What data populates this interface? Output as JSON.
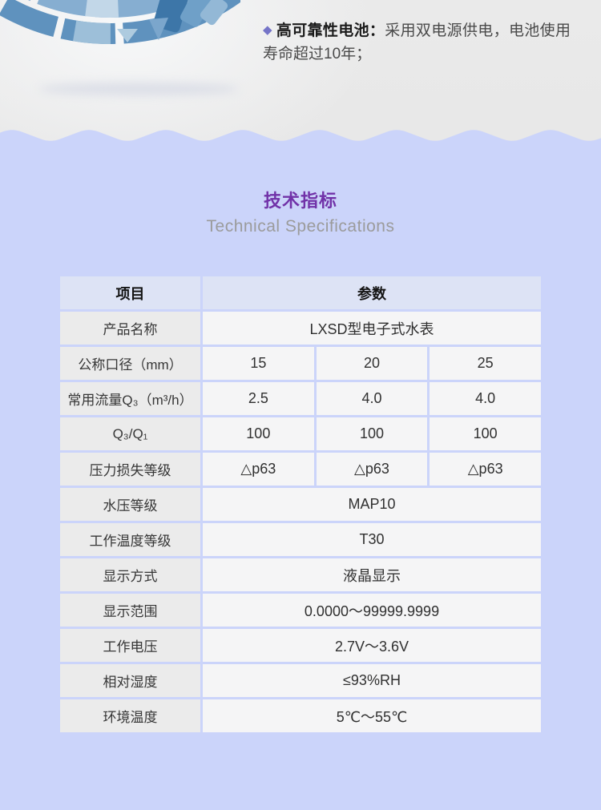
{
  "feature": {
    "bullet": "◆",
    "title": "高可靠性电池：",
    "description": "采用双电源供电，电池使用寿命超过10年；"
  },
  "section": {
    "title": "技术指标",
    "subtitle": "Technical Specifications"
  },
  "table": {
    "headers": {
      "item": "项目",
      "parameter": "参数"
    },
    "rows": [
      {
        "label": "产品名称",
        "value": "LXSD型电子式水表"
      },
      {
        "label": "公称口径（mm）",
        "values": [
          "15",
          "20",
          "25"
        ]
      },
      {
        "label": "常用流量Q₃（m³/h）",
        "values": [
          "2.5",
          "4.0",
          "4.0"
        ]
      },
      {
        "label": "Q₃/Q₁",
        "values": [
          "100",
          "100",
          "100"
        ]
      },
      {
        "label": "压力损失等级",
        "values": [
          "△p63",
          "△p63",
          "△p63"
        ]
      },
      {
        "label": "水压等级",
        "value": "MAP10"
      },
      {
        "label": "工作温度等级",
        "value": "T30"
      },
      {
        "label": "显示方式",
        "value": "液晶显示"
      },
      {
        "label": "显示范围",
        "value": "0.0000～99999.9999"
      },
      {
        "label": "工作电压",
        "value": "2.7V～3.6V"
      },
      {
        "label": "相对湿度",
        "value": "≤93%RH"
      },
      {
        "label": "环境温度",
        "value": "5℃～55℃"
      }
    ]
  },
  "colors": {
    "accent_purple": "#7132a8",
    "bullet_purple": "#7574c8",
    "body_blue": "#cbd4fa",
    "header_blue": "#dde3f5",
    "label_gray": "#ebebeb",
    "value_gray": "#f5f5f6"
  }
}
